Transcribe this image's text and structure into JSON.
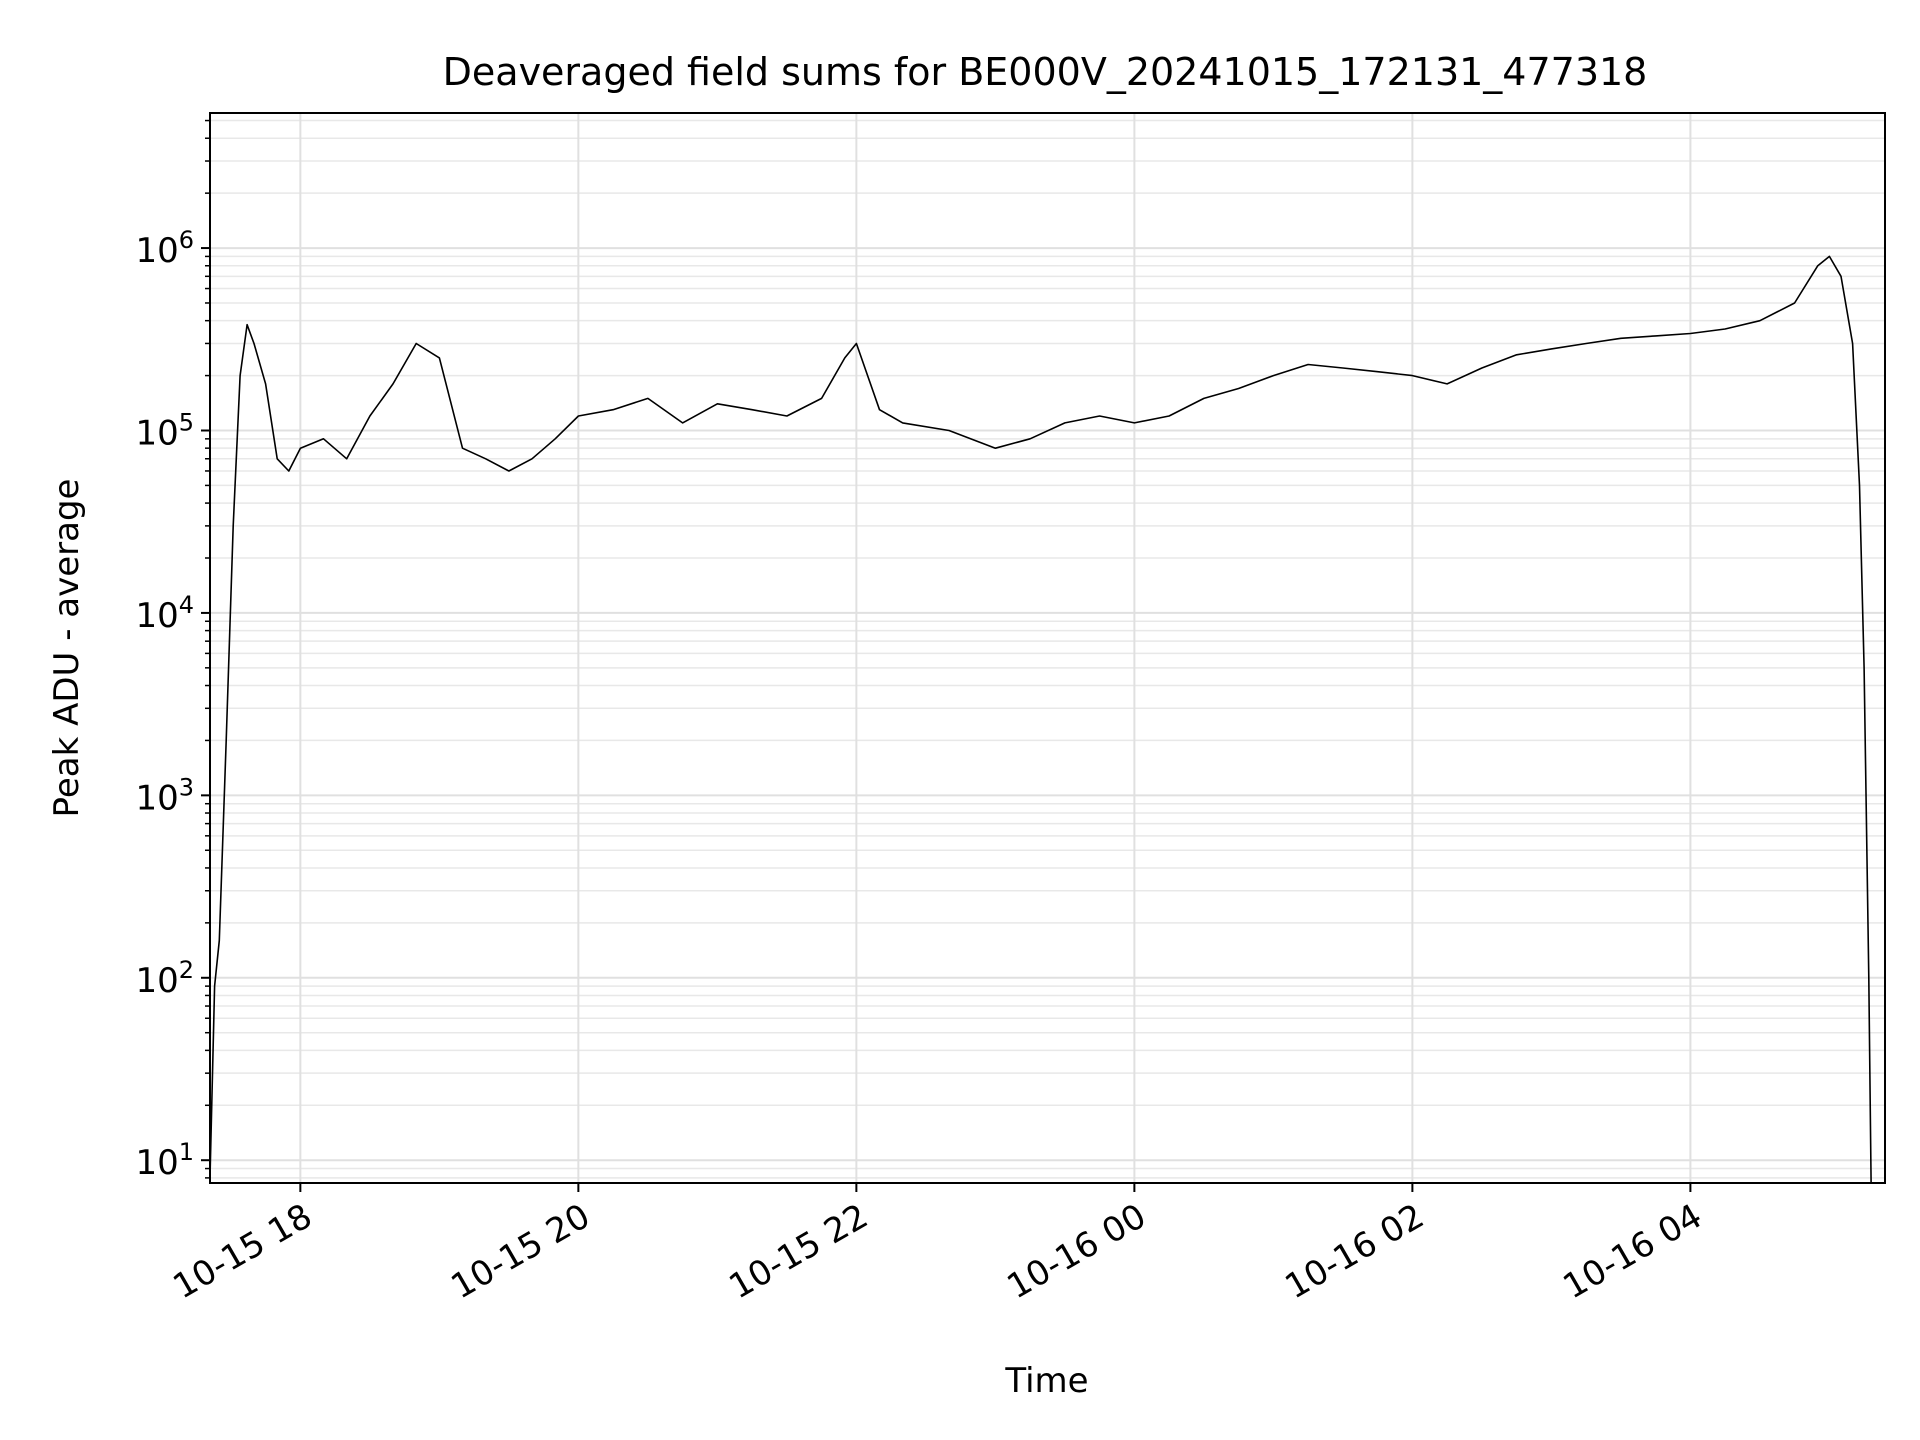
{
  "chart_data": {
    "type": "line",
    "title": "Deaveraged field sums for BE000V_20241015_172131_477318",
    "xlabel": "Time",
    "ylabel": "Peak ADU - average",
    "yscale": "log",
    "grid": true,
    "xlim": [
      "2024-10-15 17:21",
      "2024-10-16 05:24"
    ],
    "ylim": [
      7.5,
      5500000
    ],
    "x_ticks": [
      {
        "value": "2024-10-15 18:00",
        "label": "10-15 18"
      },
      {
        "value": "2024-10-15 20:00",
        "label": "10-15 20"
      },
      {
        "value": "2024-10-15 22:00",
        "label": "10-15 22"
      },
      {
        "value": "2024-10-16 00:00",
        "label": "10-16 00"
      },
      {
        "value": "2024-10-16 02:00",
        "label": "10-16 02"
      },
      {
        "value": "2024-10-16 04:00",
        "label": "10-16 04"
      }
    ],
    "y_ticks": [
      {
        "value": 10,
        "base": "10",
        "exp": "1"
      },
      {
        "value": 100,
        "base": "10",
        "exp": "2"
      },
      {
        "value": 1000,
        "base": "10",
        "exp": "3"
      },
      {
        "value": 10000,
        "base": "10",
        "exp": "4"
      },
      {
        "value": 100000,
        "base": "10",
        "exp": "5"
      },
      {
        "value": 1000000,
        "base": "10",
        "exp": "6"
      }
    ],
    "series": [
      {
        "color": "#000000",
        "x": [
          "2024-10-15 17:21",
          "2024-10-15 17:23",
          "2024-10-15 17:25",
          "2024-10-15 17:28",
          "2024-10-15 17:31",
          "2024-10-15 17:34",
          "2024-10-15 17:37",
          "2024-10-15 17:40",
          "2024-10-15 17:45",
          "2024-10-15 17:50",
          "2024-10-15 17:55",
          "2024-10-15 18:00",
          "2024-10-15 18:10",
          "2024-10-15 18:20",
          "2024-10-15 18:30",
          "2024-10-15 18:40",
          "2024-10-15 18:50",
          "2024-10-15 19:00",
          "2024-10-15 19:10",
          "2024-10-15 19:20",
          "2024-10-15 19:30",
          "2024-10-15 19:40",
          "2024-10-15 19:50",
          "2024-10-15 20:00",
          "2024-10-15 20:15",
          "2024-10-15 20:30",
          "2024-10-15 20:45",
          "2024-10-15 21:00",
          "2024-10-15 21:15",
          "2024-10-15 21:30",
          "2024-10-15 21:45",
          "2024-10-15 21:55",
          "2024-10-15 22:00",
          "2024-10-15 22:10",
          "2024-10-15 22:20",
          "2024-10-15 22:40",
          "2024-10-15 23:00",
          "2024-10-15 23:15",
          "2024-10-15 23:30",
          "2024-10-15 23:45",
          "2024-10-16 00:00",
          "2024-10-16 00:15",
          "2024-10-16 00:30",
          "2024-10-16 00:45",
          "2024-10-16 01:00",
          "2024-10-16 01:15",
          "2024-10-16 01:30",
          "2024-10-16 01:45",
          "2024-10-16 02:00",
          "2024-10-16 02:15",
          "2024-10-16 02:30",
          "2024-10-16 02:45",
          "2024-10-16 03:00",
          "2024-10-16 03:15",
          "2024-10-16 03:30",
          "2024-10-16 03:45",
          "2024-10-16 04:00",
          "2024-10-16 04:15",
          "2024-10-16 04:30",
          "2024-10-16 04:45",
          "2024-10-16 04:55",
          "2024-10-16 05:00",
          "2024-10-16 05:05",
          "2024-10-16 05:10",
          "2024-10-16 05:13",
          "2024-10-16 05:15",
          "2024-10-16 05:17",
          "2024-10-16 05:18"
        ],
        "y": [
          8,
          90,
          160,
          2000,
          30000,
          200000,
          380000,
          300000,
          180000,
          70000,
          60000,
          80000,
          90000,
          70000,
          120000,
          180000,
          300000,
          250000,
          80000,
          70000,
          60000,
          70000,
          90000,
          120000,
          130000,
          150000,
          110000,
          140000,
          130000,
          120000,
          150000,
          250000,
          300000,
          130000,
          110000,
          100000,
          80000,
          90000,
          110000,
          120000,
          110000,
          120000,
          150000,
          170000,
          200000,
          230000,
          220000,
          210000,
          200000,
          180000,
          220000,
          260000,
          280000,
          300000,
          320000,
          330000,
          340000,
          360000,
          400000,
          500000,
          800000,
          900000,
          700000,
          300000,
          50000,
          5000,
          100,
          7.5
        ]
      }
    ]
  }
}
